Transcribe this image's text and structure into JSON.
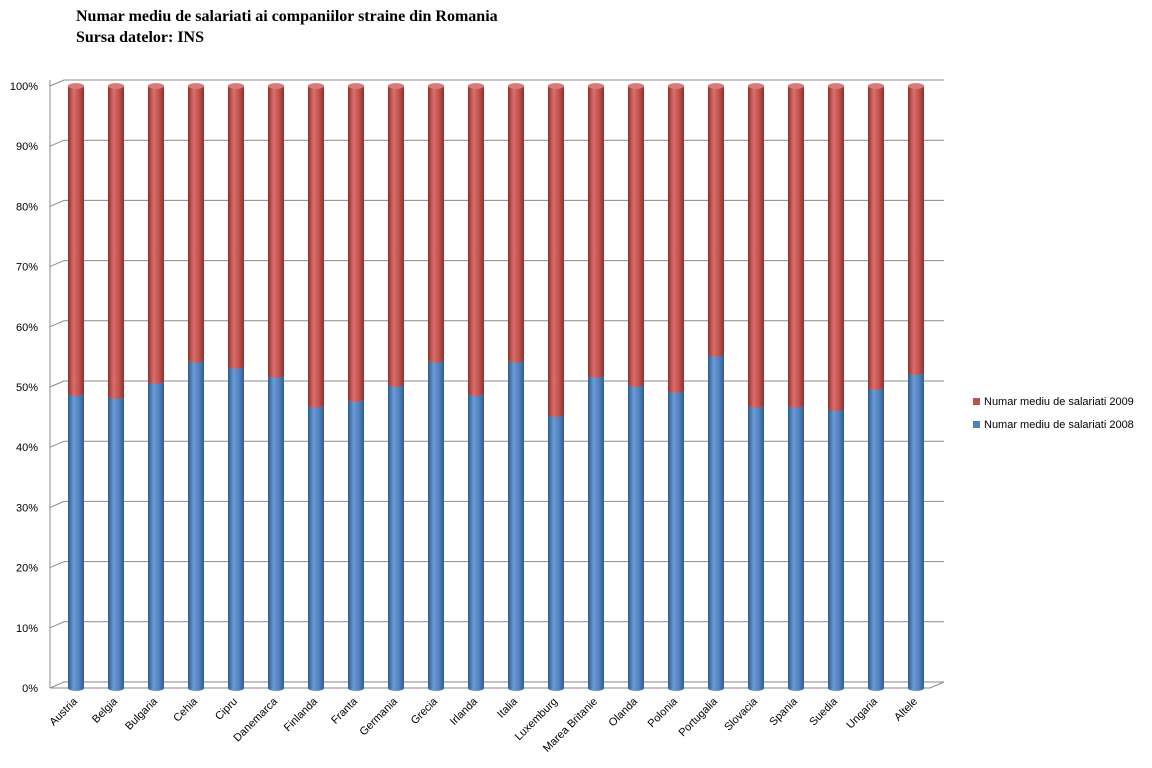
{
  "title": "Numar mediu de salariati ai companiilor straine din Romania",
  "subtitle": "Sursa datelor: INS",
  "chart_data": {
    "type": "bar",
    "stacked": true,
    "percent_stacked": true,
    "title": "Numar mediu de salariati ai companiilor straine din Romania",
    "subtitle": "Sursa datelor: INS",
    "xlabel": "",
    "ylabel": "",
    "ylim": [
      0,
      100
    ],
    "yticks": [
      "0%",
      "10%",
      "20%",
      "30%",
      "40%",
      "50%",
      "60%",
      "70%",
      "80%",
      "90%",
      "100%"
    ],
    "grid": true,
    "legend_position": "right",
    "categories": [
      "Austria",
      "Belgia",
      "Bulgaria",
      "Cehia",
      "Cipru",
      "Danemarca",
      "Finlanda",
      "Franta",
      "Germania",
      "Grecia",
      "Irlanda",
      "Italia",
      "Luxemburg",
      "Marea Britanie",
      "Olanda",
      "Polonia",
      "Portugalia",
      "Slovacia",
      "Spania",
      "Suedia",
      "Ungaria",
      "Altele"
    ],
    "series": [
      {
        "name": "Numar mediu de salariati 2008",
        "color": "#4f81bd",
        "values": [
          49,
          48.5,
          51,
          54.5,
          53.5,
          52,
          47,
          48,
          50.5,
          54.5,
          49,
          54.5,
          45.5,
          52,
          50.5,
          49.5,
          55.5,
          47,
          47,
          46.5,
          50,
          52.5
        ]
      },
      {
        "name": "Numar mediu de salariati 2009",
        "color": "#c0504d",
        "values": [
          51,
          51.5,
          49,
          45.5,
          46.5,
          48,
          53,
          52,
          49.5,
          45.5,
          51,
          45.5,
          54.5,
          48,
          49.5,
          50.5,
          44.5,
          53,
          53,
          53.5,
          50,
          47.5
        ]
      }
    ]
  }
}
